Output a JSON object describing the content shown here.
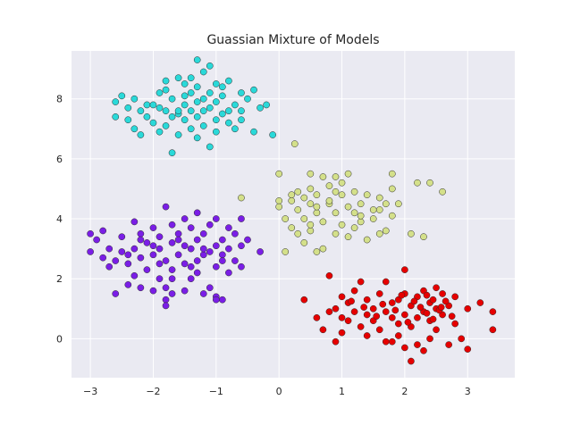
{
  "chart_data": {
    "type": "scatter",
    "title": "Guassian Mixture of Models",
    "xlabel": "",
    "ylabel": "",
    "xlim": [
      -3.3,
      3.75
    ],
    "ylim": [
      -1.3,
      9.6
    ],
    "xticks": [
      -3,
      -2,
      -1,
      0,
      1,
      2,
      3
    ],
    "yticks": [
      0,
      2,
      4,
      6,
      8
    ],
    "xtick_labels": [
      "−3",
      "−2",
      "−1",
      "0",
      "1",
      "2",
      "3"
    ],
    "ytick_labels": [
      "0",
      "2",
      "4",
      "6",
      "8"
    ],
    "grid": true,
    "background": "#eaeaf2",
    "series": [
      {
        "color": "#2ad9d9",
        "points": [
          [
            -1.3,
            9.3
          ],
          [
            -1.1,
            9.1
          ],
          [
            -1.2,
            8.9
          ],
          [
            -1.6,
            8.7
          ],
          [
            -1.8,
            8.6
          ],
          [
            -1.4,
            8.7
          ],
          [
            -1.0,
            8.5
          ],
          [
            -0.8,
            8.6
          ],
          [
            -1.5,
            8.5
          ],
          [
            -1.3,
            8.4
          ],
          [
            -1.8,
            8.3
          ],
          [
            -0.4,
            8.3
          ],
          [
            -1.9,
            8.2
          ],
          [
            -0.6,
            8.2
          ],
          [
            -0.9,
            8.1
          ],
          [
            -2.5,
            8.1
          ],
          [
            -2.3,
            8.0
          ],
          [
            -1.7,
            8.0
          ],
          [
            -1.2,
            8.0
          ],
          [
            -0.5,
            8.0
          ],
          [
            -2.6,
            7.9
          ],
          [
            -2.1,
            7.8
          ],
          [
            -1.5,
            7.8
          ],
          [
            -1.0,
            7.9
          ],
          [
            -0.7,
            7.8
          ],
          [
            -0.2,
            7.8
          ],
          [
            -1.9,
            7.7
          ],
          [
            -1.4,
            7.6
          ],
          [
            -1.1,
            7.7
          ],
          [
            -0.8,
            7.6
          ],
          [
            -2.2,
            7.6
          ],
          [
            -1.6,
            7.5
          ],
          [
            -1.3,
            7.4
          ],
          [
            -0.9,
            7.5
          ],
          [
            -1.7,
            7.4
          ],
          [
            -2.4,
            7.3
          ],
          [
            -1.5,
            7.3
          ],
          [
            -1.0,
            7.3
          ],
          [
            -0.6,
            7.3
          ],
          [
            -2.0,
            7.2
          ],
          [
            -1.8,
            7.1
          ],
          [
            -1.2,
            7.1
          ],
          [
            -0.7,
            7.0
          ],
          [
            -2.3,
            7.0
          ],
          [
            -1.4,
            7.0
          ],
          [
            -1.9,
            6.9
          ],
          [
            -1.0,
            6.9
          ],
          [
            -0.4,
            6.9
          ],
          [
            -2.2,
            6.8
          ],
          [
            -1.6,
            6.8
          ],
          [
            -0.1,
            6.8
          ],
          [
            -1.3,
            6.7
          ],
          [
            -1.1,
            6.4
          ],
          [
            -1.7,
            6.2
          ],
          [
            -2.0,
            7.8
          ],
          [
            -1.5,
            8.1
          ],
          [
            -0.9,
            8.4
          ],
          [
            -2.1,
            7.4
          ],
          [
            -1.3,
            7.9
          ],
          [
            -0.8,
            7.2
          ],
          [
            -1.6,
            7.6
          ],
          [
            -2.4,
            7.7
          ],
          [
            -1.4,
            8.2
          ],
          [
            -1.1,
            8.2
          ],
          [
            -0.3,
            7.7
          ],
          [
            -1.8,
            7.6
          ],
          [
            -2.6,
            7.4
          ],
          [
            -1.2,
            7.6
          ],
          [
            -0.6,
            7.6
          ]
        ]
      },
      {
        "color": "#d4e08a",
        "points": [
          [
            0.25,
            6.5
          ],
          [
            0.0,
            5.5
          ],
          [
            0.5,
            5.5
          ],
          [
            0.7,
            5.4
          ],
          [
            0.9,
            5.4
          ],
          [
            1.8,
            5.5
          ],
          [
            2.4,
            5.2
          ],
          [
            2.2,
            5.2
          ],
          [
            1.8,
            5.0
          ],
          [
            2.6,
            4.9
          ],
          [
            0.5,
            5.0
          ],
          [
            0.3,
            4.9
          ],
          [
            0.2,
            4.8
          ],
          [
            0.6,
            4.8
          ],
          [
            1.0,
            4.8
          ],
          [
            1.2,
            4.9
          ],
          [
            1.4,
            4.8
          ],
          [
            1.6,
            4.7
          ],
          [
            -0.6,
            4.7
          ],
          [
            0.0,
            4.6
          ],
          [
            0.2,
            4.6
          ],
          [
            0.5,
            4.5
          ],
          [
            0.8,
            4.5
          ],
          [
            1.1,
            4.4
          ],
          [
            1.3,
            4.5
          ],
          [
            1.7,
            4.5
          ],
          [
            0.3,
            4.3
          ],
          [
            0.6,
            4.2
          ],
          [
            0.9,
            4.2
          ],
          [
            1.2,
            4.2
          ],
          [
            1.5,
            4.3
          ],
          [
            1.8,
            4.1
          ],
          [
            0.1,
            4.0
          ],
          [
            0.4,
            4.0
          ],
          [
            0.7,
            3.9
          ],
          [
            1.0,
            3.8
          ],
          [
            1.3,
            3.9
          ],
          [
            0.2,
            3.7
          ],
          [
            0.5,
            3.6
          ],
          [
            0.9,
            3.5
          ],
          [
            1.1,
            3.4
          ],
          [
            1.6,
            3.5
          ],
          [
            2.1,
            3.5
          ],
          [
            2.3,
            3.4
          ],
          [
            0.4,
            3.2
          ],
          [
            0.7,
            3.0
          ],
          [
            0.6,
            2.9
          ],
          [
            0.1,
            2.9
          ],
          [
            1.4,
            3.3
          ],
          [
            0.8,
            4.6
          ],
          [
            1.0,
            5.2
          ],
          [
            0.4,
            4.7
          ],
          [
            1.5,
            4.0
          ],
          [
            0.3,
            3.5
          ],
          [
            1.2,
            3.7
          ],
          [
            0.9,
            4.9
          ],
          [
            1.6,
            4.3
          ],
          [
            0.0,
            4.4
          ],
          [
            0.6,
            4.4
          ],
          [
            1.9,
            4.5
          ],
          [
            1.1,
            5.5
          ],
          [
            0.8,
            5.1
          ],
          [
            1.3,
            4.1
          ],
          [
            0.5,
            3.8
          ],
          [
            1.7,
            3.6
          ]
        ]
      },
      {
        "color": "#7a1ee6",
        "points": [
          [
            -1.8,
            4.4
          ],
          [
            -1.3,
            4.2
          ],
          [
            -1.0,
            4.0
          ],
          [
            -0.6,
            4.0
          ],
          [
            -1.5,
            4.0
          ],
          [
            -2.3,
            3.9
          ],
          [
            -1.7,
            3.8
          ],
          [
            -1.1,
            3.8
          ],
          [
            -0.8,
            3.7
          ],
          [
            -2.0,
            3.7
          ],
          [
            -1.4,
            3.7
          ],
          [
            -2.8,
            3.6
          ],
          [
            -2.2,
            3.5
          ],
          [
            -1.6,
            3.5
          ],
          [
            -1.2,
            3.5
          ],
          [
            -0.7,
            3.5
          ],
          [
            -3.0,
            3.5
          ],
          [
            -2.5,
            3.4
          ],
          [
            -1.9,
            3.4
          ],
          [
            -1.3,
            3.3
          ],
          [
            -0.9,
            3.3
          ],
          [
            -0.5,
            3.3
          ],
          [
            -2.9,
            3.3
          ],
          [
            -2.1,
            3.2
          ],
          [
            -1.7,
            3.2
          ],
          [
            -1.5,
            3.1
          ],
          [
            -1.0,
            3.1
          ],
          [
            -0.6,
            3.1
          ],
          [
            -2.7,
            3.0
          ],
          [
            -2.3,
            3.0
          ],
          [
            -1.9,
            3.0
          ],
          [
            -1.4,
            3.0
          ],
          [
            -0.8,
            3.0
          ],
          [
            -0.3,
            2.9
          ],
          [
            -3.0,
            2.9
          ],
          [
            -2.5,
            2.9
          ],
          [
            -2.0,
            2.8
          ],
          [
            -1.6,
            2.8
          ],
          [
            -1.2,
            2.8
          ],
          [
            -0.9,
            2.8
          ],
          [
            -2.8,
            2.7
          ],
          [
            -2.2,
            2.7
          ],
          [
            -1.8,
            2.6
          ],
          [
            -1.3,
            2.6
          ],
          [
            -0.7,
            2.6
          ],
          [
            -2.4,
            2.5
          ],
          [
            -1.9,
            2.5
          ],
          [
            -1.5,
            2.5
          ],
          [
            -1.0,
            2.4
          ],
          [
            -0.6,
            2.4
          ],
          [
            -2.7,
            2.4
          ],
          [
            -2.1,
            2.3
          ],
          [
            -1.7,
            2.3
          ],
          [
            -1.3,
            2.2
          ],
          [
            -0.8,
            2.2
          ],
          [
            -2.3,
            2.1
          ],
          [
            -1.9,
            2.0
          ],
          [
            -1.4,
            2.0
          ],
          [
            -2.4,
            1.8
          ],
          [
            -2.2,
            1.7
          ],
          [
            -1.8,
            1.7
          ],
          [
            -1.1,
            1.7
          ],
          [
            -1.5,
            1.6
          ],
          [
            -2.0,
            1.6
          ],
          [
            -1.7,
            1.5
          ],
          [
            -1.2,
            1.5
          ],
          [
            -2.6,
            1.5
          ],
          [
            -1.8,
            1.3
          ],
          [
            -1.0,
            1.4
          ],
          [
            -0.9,
            1.3
          ],
          [
            -1.0,
            1.3
          ],
          [
            -1.8,
            1.1
          ],
          [
            -2.4,
            2.8
          ],
          [
            -1.6,
            3.3
          ],
          [
            -1.1,
            2.9
          ],
          [
            -2.0,
            3.1
          ],
          [
            -1.4,
            2.4
          ],
          [
            -2.6,
            2.6
          ],
          [
            -0.9,
            2.6
          ],
          [
            -1.7,
            2.0
          ],
          [
            -2.2,
            3.3
          ],
          [
            -1.2,
            3.0
          ]
        ]
      },
      {
        "color": "#e60000",
        "points": [
          [
            2.0,
            2.3
          ],
          [
            0.8,
            2.1
          ],
          [
            1.3,
            1.9
          ],
          [
            1.7,
            1.9
          ],
          [
            2.5,
            1.7
          ],
          [
            1.2,
            1.6
          ],
          [
            2.3,
            1.6
          ],
          [
            2.0,
            1.5
          ],
          [
            2.6,
            1.5
          ],
          [
            1.6,
            1.5
          ],
          [
            2.8,
            1.4
          ],
          [
            2.2,
            1.4
          ],
          [
            1.0,
            1.4
          ],
          [
            1.4,
            1.3
          ],
          [
            1.9,
            1.3
          ],
          [
            0.4,
            1.3
          ],
          [
            3.2,
            1.2
          ],
          [
            2.4,
            1.2
          ],
          [
            1.8,
            1.2
          ],
          [
            1.1,
            1.2
          ],
          [
            2.7,
            1.1
          ],
          [
            2.1,
            1.1
          ],
          [
            1.5,
            1.0
          ],
          [
            0.9,
            1.0
          ],
          [
            3.0,
            1.0
          ],
          [
            2.5,
            1.0
          ],
          [
            1.7,
            0.9
          ],
          [
            1.2,
            0.9
          ],
          [
            0.8,
            0.9
          ],
          [
            2.3,
            0.9
          ],
          [
            3.4,
            0.9
          ],
          [
            2.0,
            0.8
          ],
          [
            1.4,
            0.8
          ],
          [
            2.6,
            0.8
          ],
          [
            1.0,
            0.7
          ],
          [
            1.8,
            0.7
          ],
          [
            2.2,
            0.7
          ],
          [
            0.6,
            0.7
          ],
          [
            1.5,
            0.6
          ],
          [
            2.4,
            0.6
          ],
          [
            1.1,
            0.6
          ],
          [
            2.8,
            0.5
          ],
          [
            1.9,
            0.5
          ],
          [
            1.3,
            0.4
          ],
          [
            2.1,
            0.4
          ],
          [
            0.7,
            0.3
          ],
          [
            1.6,
            0.3
          ],
          [
            2.5,
            0.3
          ],
          [
            3.4,
            0.3
          ],
          [
            1.0,
            0.2
          ],
          [
            1.4,
            0.1
          ],
          [
            1.9,
            0.1
          ],
          [
            2.4,
            0.0
          ],
          [
            2.9,
            0.0
          ],
          [
            0.9,
            -0.1
          ],
          [
            1.7,
            -0.1
          ],
          [
            2.2,
            -0.2
          ],
          [
            1.8,
            -0.1
          ],
          [
            2.7,
            -0.2
          ],
          [
            2.0,
            -0.3
          ],
          [
            3.0,
            -0.35
          ],
          [
            2.3,
            -0.4
          ],
          [
            2.1,
            -0.75
          ],
          [
            2.45,
            1.3
          ],
          [
            2.35,
            0.85
          ],
          [
            1.65,
            1.15
          ],
          [
            2.15,
            1.25
          ],
          [
            2.55,
            0.95
          ],
          [
            1.35,
            1.05
          ],
          [
            2.05,
            0.55
          ],
          [
            1.55,
            0.75
          ],
          [
            2.25,
            1.05
          ],
          [
            2.65,
            1.25
          ],
          [
            1.85,
            0.95
          ],
          [
            2.45,
            0.65
          ],
          [
            1.15,
            1.25
          ],
          [
            2.75,
            0.75
          ],
          [
            1.95,
            1.45
          ],
          [
            2.35,
            1.45
          ],
          [
            2.58,
            1.05
          ]
        ]
      }
    ]
  }
}
